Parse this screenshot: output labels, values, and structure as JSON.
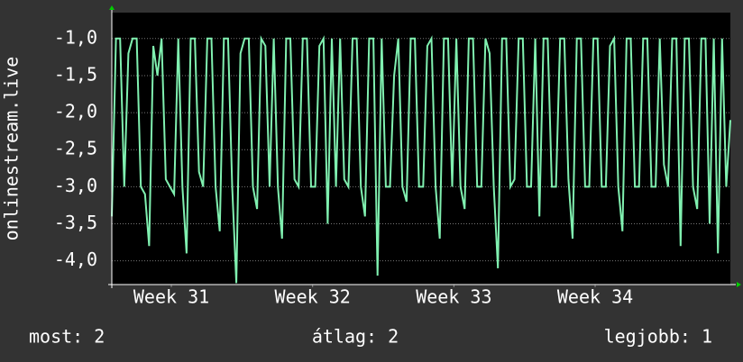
{
  "chart_data": {
    "type": "line",
    "y_label": "onlinestream.live",
    "ylim": [
      -4.32,
      -0.65
    ],
    "yticks": [
      {
        "value": -1.0,
        "label": "-1,0"
      },
      {
        "value": -1.5,
        "label": "-1,5"
      },
      {
        "value": -2.0,
        "label": "-2,0"
      },
      {
        "value": -2.5,
        "label": "-2,5"
      },
      {
        "value": -3.0,
        "label": "-3,0"
      },
      {
        "value": -3.5,
        "label": "-3,5"
      },
      {
        "value": -4.0,
        "label": "-4,0"
      }
    ],
    "xlim": [
      0.55,
      31.2
    ],
    "xticks": [
      {
        "value": 3.5,
        "label": "Week 31"
      },
      {
        "value": 10.5,
        "label": "Week 32"
      },
      {
        "value": 17.5,
        "label": "Week 33"
      },
      {
        "value": 24.5,
        "label": "Week 34"
      }
    ],
    "grid": true,
    "series": [
      {
        "color": "#80f0b0",
        "values": [
          -3.4,
          -1.0,
          -1.0,
          -3.0,
          -1.2,
          -1.0,
          -1.0,
          -3.0,
          -3.1,
          -3.8,
          -1.1,
          -1.5,
          -1.0,
          -2.9,
          -3.0,
          -3.1,
          -1.0,
          -3.0,
          -3.9,
          -1.0,
          -1.0,
          -2.8,
          -3.0,
          -1.0,
          -1.0,
          -3.0,
          -3.6,
          -1.0,
          -1.0,
          -3.0,
          -4.3,
          -1.2,
          -1.0,
          -1.0,
          -3.0,
          -3.3,
          -1.0,
          -1.1,
          -3.0,
          -1.0,
          -3.0,
          -3.7,
          -1.0,
          -1.0,
          -2.9,
          -3.0,
          -1.0,
          -1.0,
          -3.0,
          -3.0,
          -1.1,
          -1.0,
          -3.5,
          -1.0,
          -3.0,
          -1.0,
          -2.9,
          -3.0,
          -1.0,
          -1.0,
          -3.0,
          -3.4,
          -1.0,
          -1.0,
          -4.2,
          -1.0,
          -3.0,
          -3.0,
          -1.5,
          -1.0,
          -3.0,
          -3.2,
          -1.0,
          -1.0,
          -3.0,
          -3.0,
          -1.1,
          -1.0,
          -3.0,
          -3.7,
          -1.0,
          -1.0,
          -3.0,
          -1.0,
          -3.0,
          -3.3,
          -1.0,
          -1.0,
          -3.0,
          -3.0,
          -1.0,
          -1.2,
          -3.0,
          -4.1,
          -1.0,
          -1.0,
          -3.0,
          -2.9,
          -1.0,
          -1.0,
          -3.0,
          -3.0,
          -1.0,
          -3.4,
          -1.0,
          -1.0,
          -3.0,
          -3.0,
          -1.0,
          -1.0,
          -2.9,
          -3.7,
          -1.0,
          -1.0,
          -3.0,
          -3.0,
          -1.0,
          -1.0,
          -3.0,
          -3.0,
          -1.1,
          -1.0,
          -3.0,
          -3.6,
          -1.0,
          -1.0,
          -3.0,
          -3.0,
          -1.0,
          -1.0,
          -3.0,
          -3.0,
          -1.0,
          -2.7,
          -3.0,
          -1.0,
          -1.0,
          -3.8,
          -1.0,
          -1.0,
          -3.0,
          -3.3,
          -1.0,
          -1.0,
          -3.5,
          -1.0,
          -3.9,
          -1.0,
          -3.0,
          -2.1
        ]
      }
    ],
    "footer": [
      "most: 2",
      "átlag: 2",
      "legjobb: 1"
    ]
  }
}
